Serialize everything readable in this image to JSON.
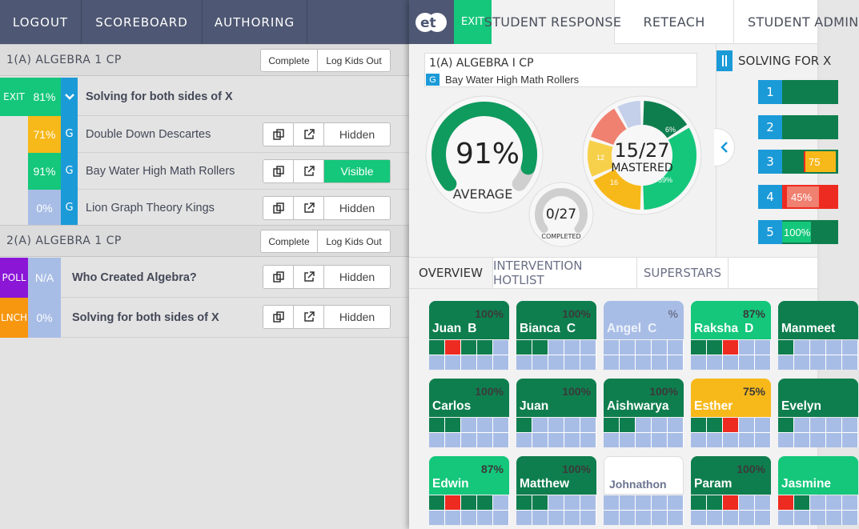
{
  "colors": {
    "nav_bg": "#4e5773",
    "green": "#14c77b",
    "dark_green": "#0f7e4e",
    "yellow": "#f7b81a",
    "blue": "#1b9ad8",
    "light_blue": "#a8bde6",
    "purple": "#8b16d6",
    "orange": "#f7960f",
    "red": "#ee2b21",
    "pale_red": "#f08070"
  },
  "left_nav": [
    "LOGOUT",
    "SCOREBOARD",
    "AUTHORING",
    ""
  ],
  "classes": [
    {
      "title": "1(A) ALGEBRA 1 CP",
      "complete_label": "Complete",
      "logout_label": "Log Kids Out",
      "activity": {
        "tag": "EXIT",
        "pct": "81%",
        "label": "Solving for both sides of X"
      },
      "groups": [
        {
          "pct": "71%",
          "g": "G",
          "label": "Double Down Descartes",
          "visibility": "Hidden",
          "visible": false,
          "pct_color": "#f7b81a"
        },
        {
          "pct": "91%",
          "g": "G",
          "label": "Bay Water High Math Rollers",
          "visibility": "Visible",
          "visible": true,
          "pct_color": "#14c77b"
        },
        {
          "pct": "0%",
          "g": "G",
          "label": "Lion Graph Theory Kings",
          "visibility": "Hidden",
          "visible": false,
          "pct_color": "#a8bde6"
        }
      ]
    },
    {
      "title": "2(A) ALGEBRA 1 CP",
      "complete_label": "Complete",
      "logout_label": "Log Kids Out",
      "items": [
        {
          "tag": "POLL",
          "tag_color": "#8b16d6",
          "pct": "N/A",
          "label": "Who Created Algebra?",
          "visibility": "Hidden"
        },
        {
          "tag": "LNCH",
          "tag_color": "#f7960f",
          "pct": "0%",
          "label": "Solving for both sides of X",
          "visibility": "Hidden"
        }
      ]
    }
  ],
  "right_tabs": {
    "exit": "EXIT",
    "tabs": [
      "STUDENT RESPONSE",
      "RETEACH",
      "STUDENT ADMIN"
    ]
  },
  "class_box": {
    "title": "1(A) ALGEBRA I CP",
    "g": "G",
    "team": "Bay Water High Math Rollers"
  },
  "average": {
    "value": 91,
    "label": "91%",
    "caption": "AVERAGE"
  },
  "completed": {
    "done": 0,
    "total": 27,
    "label": "0/27",
    "caption": "COMPLETED"
  },
  "mastered": {
    "label": "15/27",
    "caption": "MASTERED",
    "slice_labels": [
      "6%",
      "59%",
      "16",
      "12",
      "",
      ""
    ]
  },
  "solving": {
    "title": "SOLVING FOR X",
    "rows": [
      {
        "n": "1",
        "badge": ""
      },
      {
        "n": "2",
        "badge": ""
      },
      {
        "n": "3",
        "badge": "75"
      },
      {
        "n": "4",
        "badge": "45%"
      },
      {
        "n": "5",
        "badge": "100%"
      }
    ]
  },
  "sub_tabs": [
    "OVERVIEW",
    "INTERVENTION HOTLIST",
    "SUPERSTARS"
  ],
  "students": [
    {
      "first": "Juan",
      "last": "B",
      "pct": "100%",
      "color": "#0f7e4e",
      "cells": [
        "g",
        "r",
        "g",
        "g",
        "b",
        "b",
        "b",
        "b",
        "b",
        "b"
      ]
    },
    {
      "first": "Bianca",
      "last": "C",
      "pct": "100%",
      "color": "#0f7e4e",
      "cells": [
        "g",
        "g",
        "b",
        "b",
        "b",
        "b",
        "b",
        "b",
        "b",
        "b"
      ]
    },
    {
      "first": "Angel",
      "last": "C",
      "pct": "%",
      "color": "#a8bde6",
      "cells": [
        "b",
        "b",
        "b",
        "b",
        "b",
        "b",
        "b",
        "b",
        "b",
        "b"
      ]
    },
    {
      "first": "Raksha",
      "last": "D",
      "pct": "87%",
      "color": "#14c77b",
      "cells": [
        "g",
        "g",
        "r",
        "b",
        "b",
        "b",
        "b",
        "b",
        "b",
        "b"
      ]
    },
    {
      "first": "Manmeet",
      "last": "",
      "pct": "",
      "color": "#0f7e4e",
      "cells": [
        "g",
        "b",
        "b",
        "b",
        "b",
        "b",
        "b",
        "b",
        "b",
        "b"
      ]
    },
    {
      "first": "Carlos",
      "last": "",
      "pct": "100%",
      "color": "#0f7e4e",
      "cells": [
        "g",
        "g",
        "b",
        "b",
        "b",
        "b",
        "b",
        "b",
        "b",
        "b"
      ]
    },
    {
      "first": "Juan",
      "last": "",
      "pct": "100%",
      "color": "#0f7e4e",
      "cells": [
        "g",
        "b",
        "b",
        "b",
        "b",
        "b",
        "b",
        "b",
        "b",
        "b"
      ]
    },
    {
      "first": "Aishwarya",
      "last": "",
      "pct": "100%",
      "color": "#0f7e4e",
      "cells": [
        "g",
        "g",
        "b",
        "b",
        "b",
        "b",
        "b",
        "b",
        "b",
        "b"
      ]
    },
    {
      "first": "Esther",
      "last": "",
      "pct": "75%",
      "color": "#f7b81a",
      "cells": [
        "g",
        "g",
        "r",
        "b",
        "b",
        "b",
        "b",
        "b",
        "b",
        "b"
      ]
    },
    {
      "first": "Evelyn",
      "last": "",
      "pct": "",
      "color": "#0f7e4e",
      "cells": [
        "g",
        "b",
        "b",
        "b",
        "b",
        "b",
        "b",
        "b",
        "b",
        "b"
      ]
    },
    {
      "first": "Edwin",
      "last": "",
      "pct": "87%",
      "color": "#14c77b",
      "cells": [
        "g",
        "r",
        "g",
        "g",
        "b",
        "b",
        "b",
        "b",
        "b",
        "b"
      ]
    },
    {
      "first": "Matthew",
      "last": "",
      "pct": "100%",
      "color": "#0f7e4e",
      "cells": [
        "g",
        "g",
        "b",
        "b",
        "b",
        "b",
        "b",
        "b",
        "b",
        "b"
      ]
    },
    {
      "first": "Johnathon",
      "last": "",
      "pct": "",
      "color": "#ffffff",
      "cells": [
        "b",
        "b",
        "b",
        "b",
        "b",
        "b",
        "b",
        "b",
        "b",
        "b"
      ]
    },
    {
      "first": "Param",
      "last": "",
      "pct": "100%",
      "color": "#0f7e4e",
      "cells": [
        "g",
        "g",
        "r",
        "b",
        "b",
        "b",
        "b",
        "b",
        "b",
        "b"
      ]
    },
    {
      "first": "Jasmine",
      "last": "",
      "pct": "",
      "color": "#14c77b",
      "cells": [
        "r",
        "g",
        "b",
        "b",
        "b",
        "b",
        "b",
        "b",
        "b",
        "b"
      ]
    }
  ]
}
